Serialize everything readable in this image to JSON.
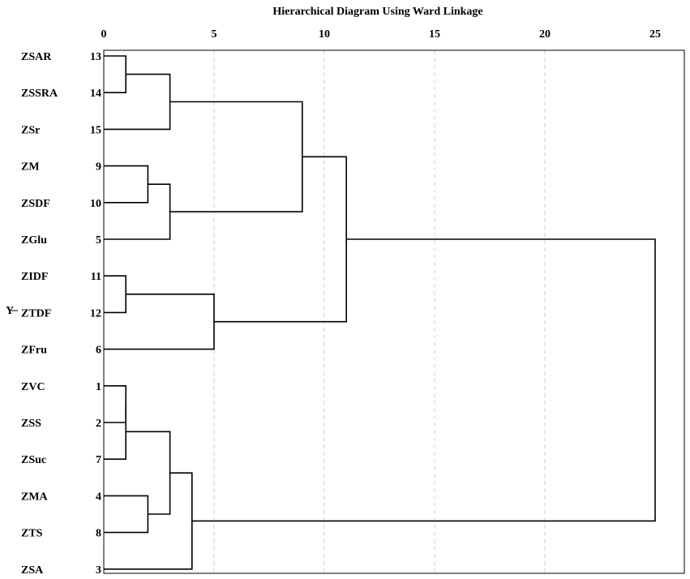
{
  "chart_data": {
    "type": "dendrogram",
    "title": "Hierarchical Diagram Using Ward Linkage",
    "ylabel": "Y",
    "xlim": [
      0,
      25
    ],
    "x_ticks": [
      "0",
      "5",
      "10",
      "15",
      "20",
      "25"
    ],
    "grid": true,
    "leaves": [
      {
        "label": "ZSAR",
        "id": "13"
      },
      {
        "label": "ZSSRA",
        "id": "14"
      },
      {
        "label": "ZSr",
        "id": "15"
      },
      {
        "label": "ZM",
        "id": "9"
      },
      {
        "label": "ZSDF",
        "id": "10"
      },
      {
        "label": "ZGlu",
        "id": "5"
      },
      {
        "label": "ZIDF",
        "id": "11"
      },
      {
        "label": "ZTDF",
        "id": "12"
      },
      {
        "label": "ZFru",
        "id": "6"
      },
      {
        "label": "ZVC",
        "id": "1"
      },
      {
        "label": "ZSS",
        "id": "2"
      },
      {
        "label": "ZSuc",
        "id": "7"
      },
      {
        "label": "ZMA",
        "id": "4"
      },
      {
        "label": "ZTS",
        "id": "8"
      },
      {
        "label": "ZSA",
        "id": "3"
      }
    ],
    "merges": [
      {
        "left": "L0",
        "right": "L1",
        "distance": 1
      },
      {
        "left": "M0",
        "right": "L2",
        "distance": 3
      },
      {
        "left": "L3",
        "right": "L4",
        "distance": 2
      },
      {
        "left": "M2",
        "right": "L5",
        "distance": 3
      },
      {
        "left": "M1",
        "right": "M3",
        "distance": 9
      },
      {
        "left": "L6",
        "right": "L7",
        "distance": 1
      },
      {
        "left": "M5",
        "right": "L8",
        "distance": 5
      },
      {
        "left": "M4",
        "right": "M6",
        "distance": 11
      },
      {
        "left": "L9",
        "right": "L10",
        "distance": 1
      },
      {
        "left": "M8",
        "right": "L11",
        "distance": 1
      },
      {
        "left": "L12",
        "right": "L13",
        "distance": 2
      },
      {
        "left": "M9",
        "right": "M10",
        "distance": 3
      },
      {
        "left": "M11",
        "right": "L14",
        "distance": 4
      },
      {
        "left": "M7",
        "right": "M12",
        "distance": 25
      }
    ]
  }
}
